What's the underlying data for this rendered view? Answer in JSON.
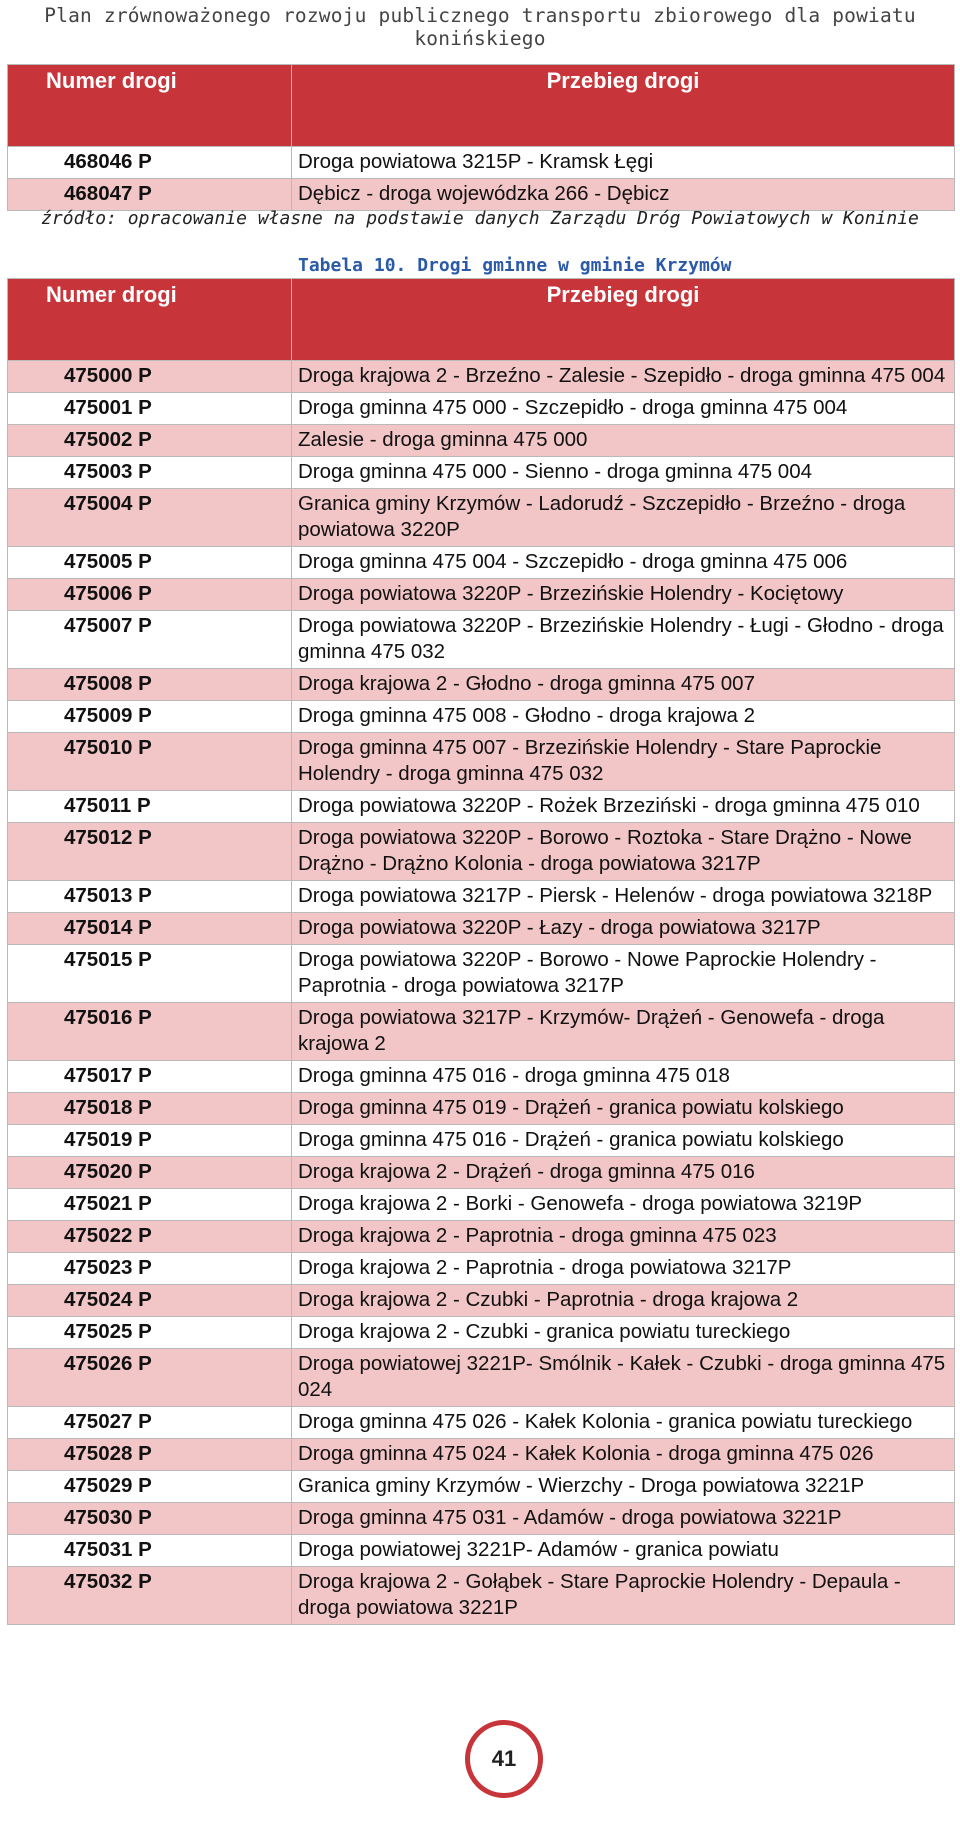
{
  "header": {
    "title": "Plan zrównoważonego rozwoju publicznego transportu zbiorowego dla powiatu konińskiego"
  },
  "table1": {
    "headers": [
      "Numer drogi",
      "Przebieg drogi"
    ],
    "rows": [
      [
        "468046 P",
        "Droga powiatowa 3215P - Kramsk Łęgi"
      ],
      [
        "468047 P",
        "Dębicz - droga wojewódzka 266 - Dębicz"
      ]
    ],
    "source": "źródło: opracowanie własne na podstawie danych Zarządu Dróg Powiatowych w Koninie"
  },
  "table2": {
    "caption": "Tabela 10. Drogi gminne w gminie Krzymów",
    "headers": [
      "Numer drogi",
      "Przebieg drogi"
    ],
    "rows": [
      [
        "475000 P",
        "Droga krajowa 2 - Brzeźno - Zalesie - Szepidło - droga gminna 475 004"
      ],
      [
        "475001 P",
        "Droga gminna 475 000 - Szczepidło - droga gminna 475 004"
      ],
      [
        "475002 P",
        "Zalesie - droga gminna 475 000"
      ],
      [
        "475003 P",
        "Droga gminna 475 000 - Sienno - droga gminna 475 004"
      ],
      [
        "475004 P",
        "Granica gminy Krzymów - Ladorudź - Szczepidło - Brzeźno - droga powiatowa 3220P"
      ],
      [
        "475005 P",
        "Droga gminna 475 004 - Szczepidło - droga gminna 475 006"
      ],
      [
        "475006 P",
        "Droga powiatowa 3220P - Brzezińskie Holendry - Kociętowy"
      ],
      [
        "475007 P",
        "Droga powiatowa 3220P - Brzezińskie Holendry - Ługi - Głodno - droga gminna 475 032"
      ],
      [
        "475008 P",
        "Droga krajowa 2 - Głodno - droga gminna 475 007"
      ],
      [
        "475009 P",
        "Droga gminna 475 008 - Głodno - droga krajowa 2"
      ],
      [
        "475010 P",
        "Droga gminna 475 007 - Brzezińskie Holendry - Stare Paprockie Holendry - droga gminna 475 032"
      ],
      [
        "475011 P",
        "Droga powiatowa 3220P - Rożek Brzeziński - droga gminna 475 010"
      ],
      [
        "475012 P",
        "Droga powiatowa 3220P - Borowo - Roztoka - Stare Drążno - Nowe Drążno - Drążno Kolonia - droga powiatowa 3217P"
      ],
      [
        "475013 P",
        "Droga powiatowa 3217P - Piersk - Helenów - droga powiatowa 3218P"
      ],
      [
        "475014 P",
        "Droga powiatowa 3220P - Łazy - droga powiatowa 3217P"
      ],
      [
        "475015 P",
        "Droga powiatowa 3220P - Borowo - Nowe Paprockie Holendry - Paprotnia - droga powiatowa 3217P"
      ],
      [
        "475016 P",
        "Droga powiatowa 3217P - Krzymów- Drążeń - Genowefa - droga krajowa 2"
      ],
      [
        "475017 P",
        "Droga gminna 475 016 - droga gminna 475 018"
      ],
      [
        "475018 P",
        "Droga gminna 475 019 - Drążeń - granica powiatu kolskiego"
      ],
      [
        "475019 P",
        "Droga gminna 475 016 - Drążeń - granica powiatu kolskiego"
      ],
      [
        "475020 P",
        "Droga krajowa 2 - Drążeń - droga gminna 475 016"
      ],
      [
        "475021 P",
        "Droga krajowa 2 - Borki - Genowefa - droga powiatowa 3219P"
      ],
      [
        "475022 P",
        "Droga krajowa 2 - Paprotnia - droga gminna 475 023"
      ],
      [
        "475023 P",
        "Droga krajowa 2 - Paprotnia - droga powiatowa 3217P"
      ],
      [
        "475024 P",
        "Droga krajowa 2 - Czubki - Paprotnia - droga krajowa 2"
      ],
      [
        "475025 P",
        "Droga krajowa 2 - Czubki - granica powiatu tureckiego"
      ],
      [
        "475026 P",
        "Droga powiatowej 3221P- Smólnik - Kałek - Czubki - droga gminna 475 024"
      ],
      [
        "475027 P",
        "Droga gminna 475 026 - Kałek Kolonia - granica powiatu tureckiego"
      ],
      [
        "475028 P",
        "Droga gminna 475 024 - Kałek Kolonia - droga gminna 475 026"
      ],
      [
        "475029 P",
        "Granica gminy Krzymów - Wierzchy - Droga powiatowa 3221P"
      ],
      [
        "475030 P",
        "Droga gminna 475 031 - Adamów - droga powiatowa 3221P"
      ],
      [
        "475031 P",
        "Droga powiatowej 3221P- Adamów - granica powiatu"
      ],
      [
        "475032 P",
        "Droga krajowa 2 - Gołąbek - Stare Paprockie Holendry - Depaula - droga powiatowa 3221P"
      ]
    ]
  },
  "footer": {
    "page_number": "41"
  },
  "colors": {
    "header_red": "#c7343a",
    "row_pink": "#f2c6c7",
    "caption_blue": "#2b5aa8"
  }
}
